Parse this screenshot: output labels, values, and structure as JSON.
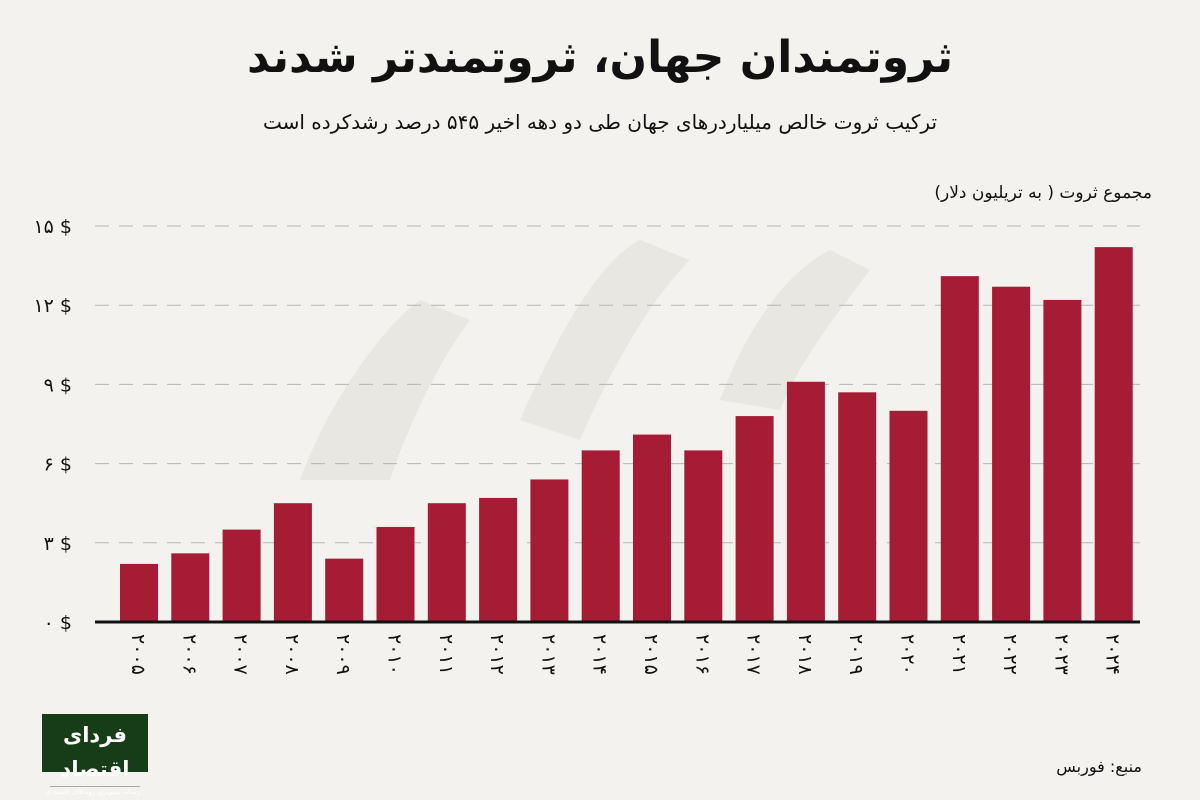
{
  "header": {
    "title": "ثروتمندان جهان، ثروتمندتر شدند",
    "subtitle": "ترکیب ثروت خالص میلیاردرهای جهان طی دو دهه اخیر ۵۴۵ درصد رشدکرده است"
  },
  "footer": {
    "source": "منبع: فوربس",
    "logo_text": "فردای اقتصاد",
    "logo_tagline": "رسانه تصویری روندهای اقتصادی"
  },
  "colors": {
    "bar": "#a51c34",
    "background": "#f3f2ee",
    "grid": "#b5b5b5",
    "logo_bg": "#173d18"
  },
  "chart_data": {
    "type": "bar",
    "title": "ثروتمندان جهان، ثروتمندتر شدند",
    "ylabel": "مجموع ثروت ( به تریلیون دلار)",
    "xlabel": "",
    "categories": [
      "۲۰۰۵",
      "۲۰۰۶",
      "۲۰۰۷",
      "۲۰۰۸",
      "۲۰۰۹",
      "۲۰۱۰",
      "۲۰۱۱",
      "۲۰۱۲",
      "۲۰۱۳",
      "۲۰۱۴",
      "۲۰۱۵",
      "۲۰۱۶",
      "۲۰۱۷",
      "۲۰۱۸",
      "۲۰۱۹",
      "۲۰۲۰",
      "۲۰۲۱",
      "۲۰۲۲",
      "۲۰۲۳",
      "۲۰۲۴"
    ],
    "values": [
      2.2,
      2.6,
      3.5,
      4.5,
      2.4,
      3.6,
      4.5,
      4.7,
      5.4,
      6.5,
      7.1,
      6.5,
      7.8,
      9.1,
      8.7,
      8.0,
      13.1,
      12.7,
      12.2,
      14.2
    ],
    "ylim": [
      0,
      15
    ],
    "yticks": [
      0,
      3,
      6,
      9,
      12,
      15
    ],
    "ytick_labels": [
      "۰ $",
      "۳ $",
      "۶ $",
      "۹ $",
      "۱۲ $",
      "۱۵ $"
    ],
    "grid": "horizontal dashed",
    "legend": "none"
  }
}
